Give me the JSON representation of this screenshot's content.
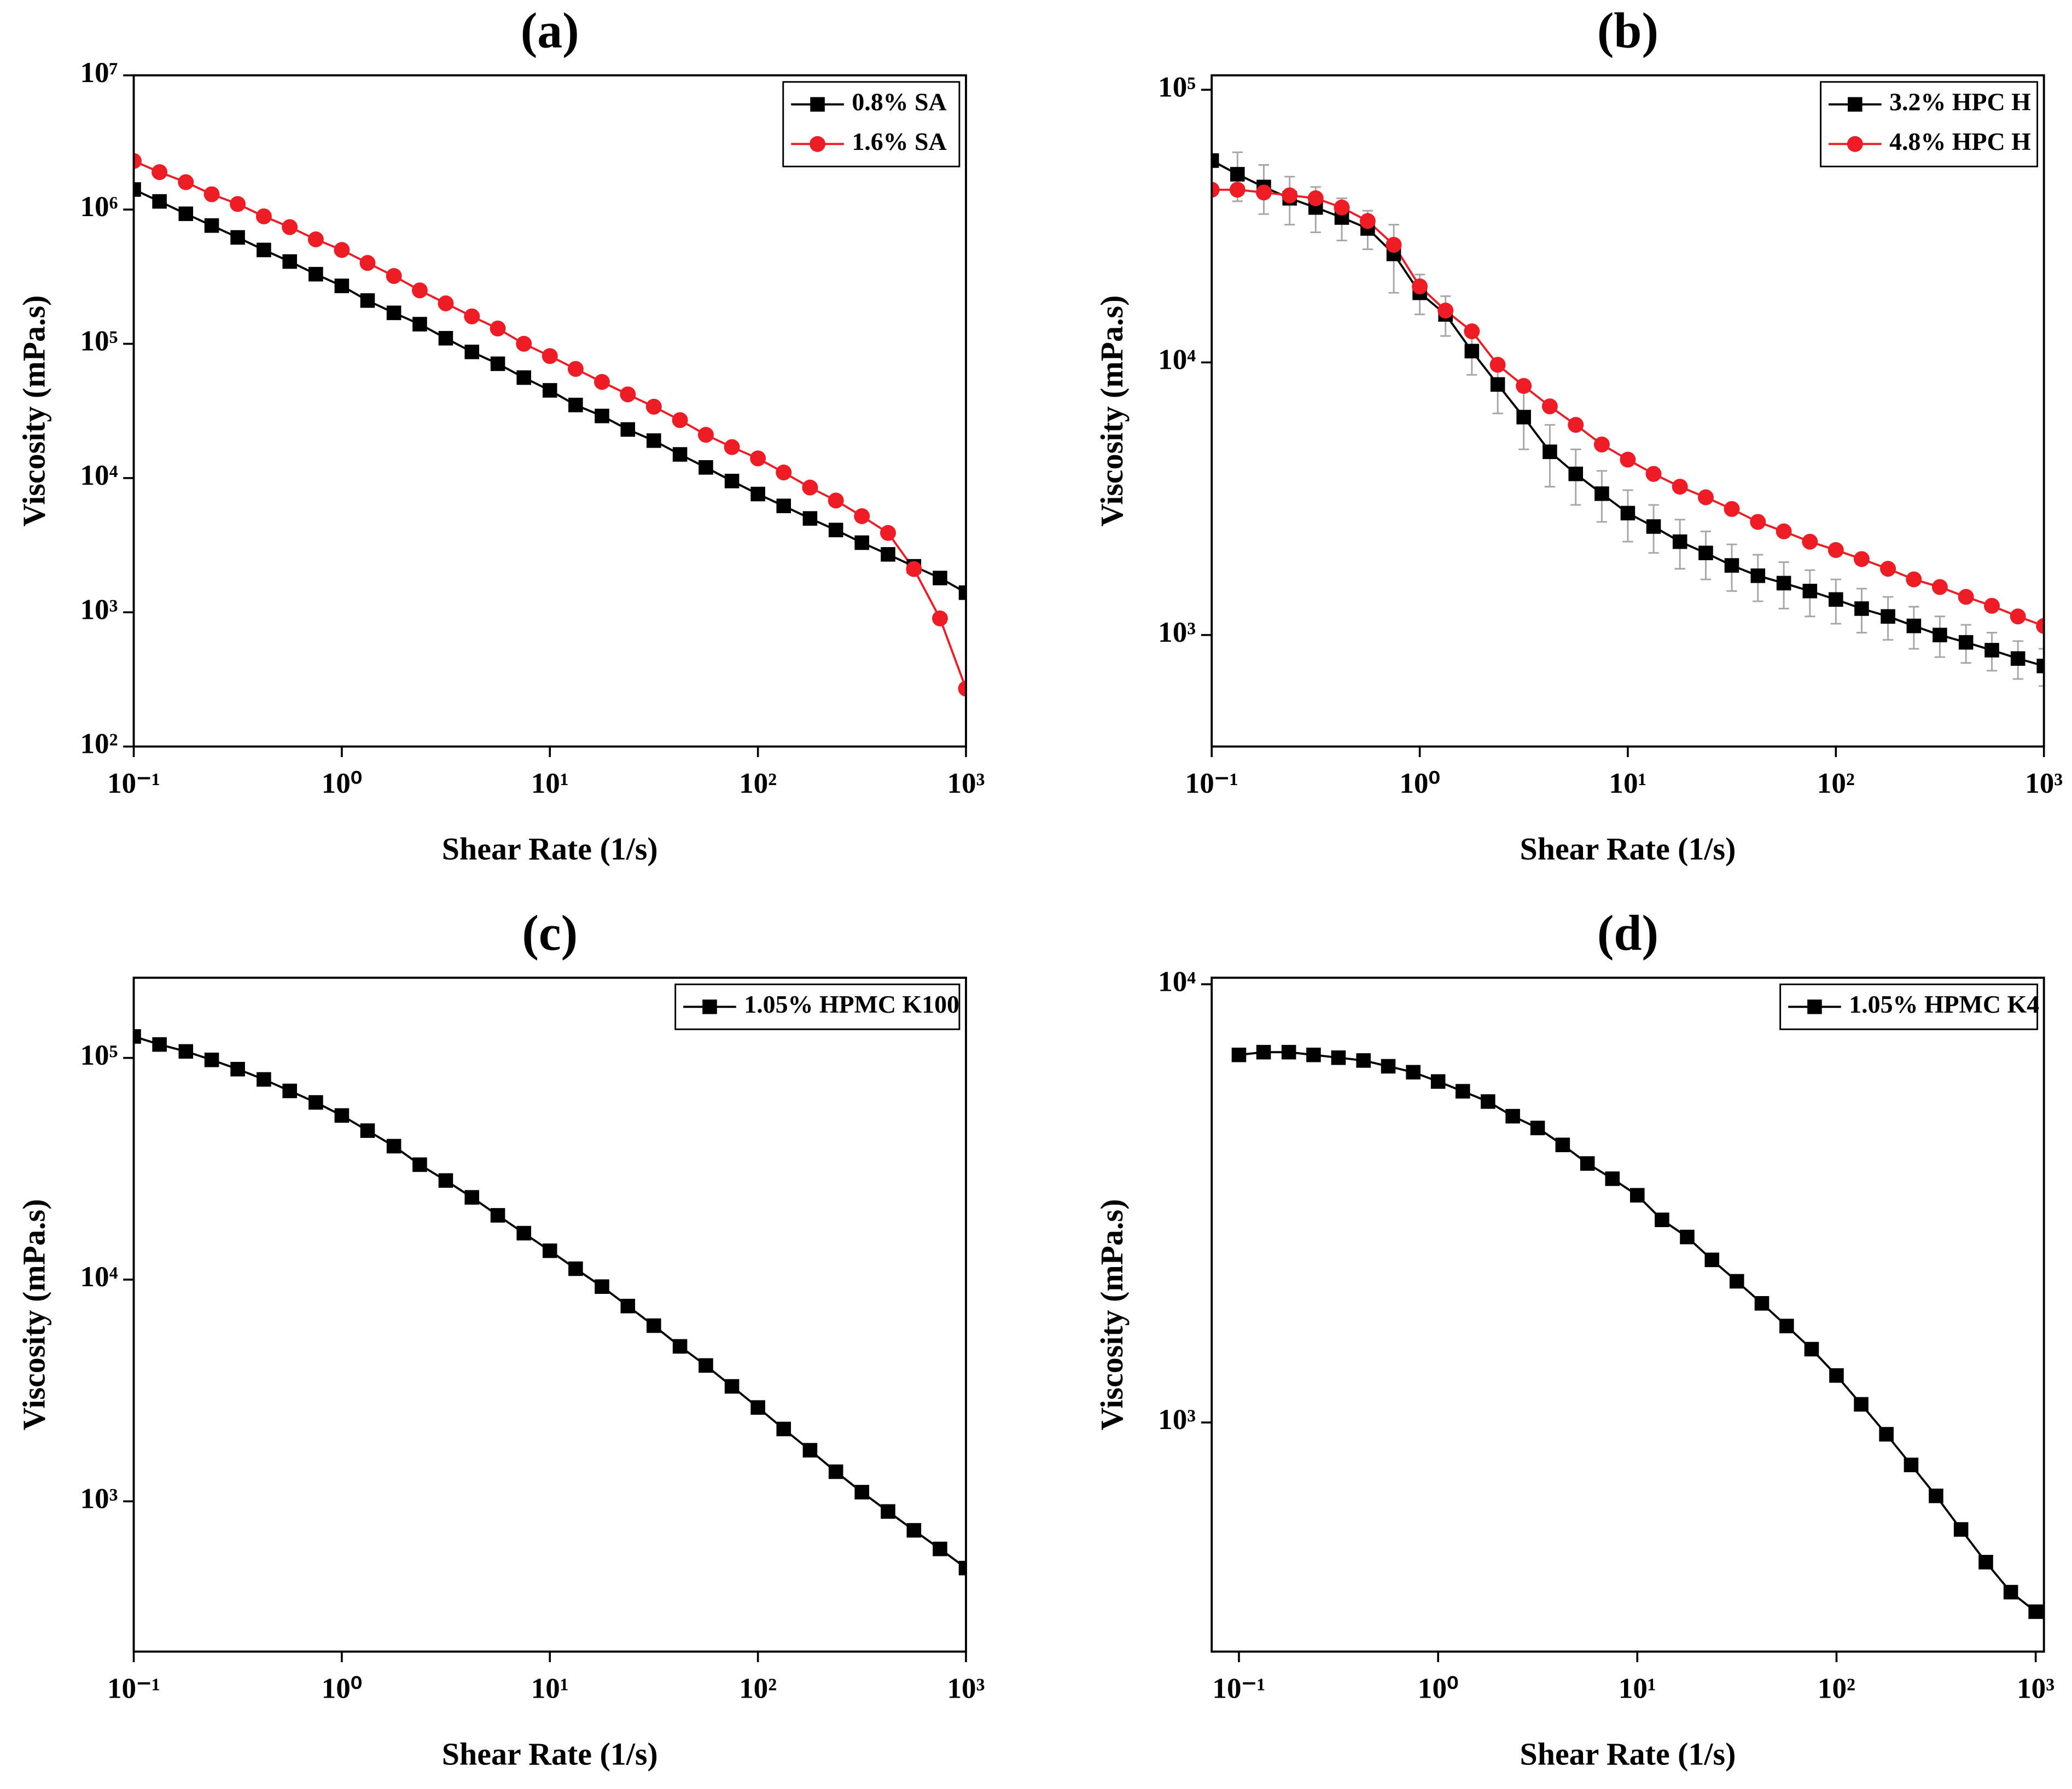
{
  "chart_data": [
    {
      "type": "line",
      "title": "(a)",
      "xlabel": "Shear Rate (1/s)",
      "ylabel": "Viscosity (mPa.s)",
      "log_x": true,
      "log_y": true,
      "legend": "upper right",
      "x": [
        0.1,
        0.133,
        0.178,
        0.237,
        0.316,
        0.422,
        0.562,
        0.75,
        1,
        1.33,
        1.78,
        2.37,
        3.16,
        4.22,
        5.62,
        7.5,
        10,
        13.3,
        17.8,
        23.7,
        31.6,
        42.2,
        56.2,
        75,
        100,
        133,
        178,
        237,
        316,
        422,
        562,
        750,
        1000
      ],
      "xlim": [
        0.1,
        1000
      ],
      "xticks": [
        {
          "value": 0.1,
          "label": "10⁻¹"
        },
        {
          "value": 1,
          "label": "10⁰"
        },
        {
          "value": 10,
          "label": "10¹"
        },
        {
          "value": 100,
          "label": "10²"
        },
        {
          "value": 1000,
          "label": "10³"
        }
      ],
      "ylim": [
        100,
        10000000
      ],
      "yticks": [
        {
          "value": 100,
          "label": "10²"
        },
        {
          "value": 1000,
          "label": "10³"
        },
        {
          "value": 10000,
          "label": "10⁴"
        },
        {
          "value": 100000,
          "label": "10⁵"
        },
        {
          "value": 1000000,
          "label": "10⁶"
        },
        {
          "value": 10000000,
          "label": "10⁷"
        }
      ],
      "series": [
        {
          "name": "0.8% SA",
          "color": "#000000",
          "marker": "square",
          "values": [
            1410000,
            1150000,
            930000,
            760000,
            620000,
            500000,
            410000,
            330000,
            270000,
            210000,
            170000,
            140000,
            110000,
            87000,
            71000,
            56000,
            45000,
            35000,
            29000,
            23000,
            19000,
            15000,
            12000,
            9500,
            7600,
            6200,
            5000,
            4100,
            3300,
            2700,
            2200,
            1800,
            1400
          ]
        },
        {
          "name": "1.6% SA",
          "color": "#ee1c25",
          "marker": "circle",
          "values": [
            2300000,
            1900000,
            1600000,
            1300000,
            1100000,
            890000,
            740000,
            600000,
            500000,
            400000,
            320000,
            250000,
            200000,
            160000,
            130000,
            100000,
            81000,
            65000,
            52000,
            42000,
            34000,
            27000,
            21000,
            17000,
            14000,
            11000,
            8500,
            6800,
            5200,
            3900,
            2100,
            900,
            270
          ]
        }
      ]
    },
    {
      "type": "line",
      "title": "(b)",
      "xlabel": "Shear Rate (1/s)",
      "ylabel": "Viscosity (mPa.s)",
      "log_x": true,
      "log_y": true,
      "legend": "upper right",
      "x": [
        0.1,
        0.133,
        0.178,
        0.237,
        0.316,
        0.422,
        0.562,
        0.75,
        1,
        1.33,
        1.78,
        2.37,
        3.16,
        4.22,
        5.62,
        7.5,
        10,
        13.3,
        17.8,
        23.7,
        31.6,
        42.2,
        56.2,
        75,
        100,
        133,
        178,
        237,
        316,
        422,
        562,
        750,
        1000
      ],
      "xlim": [
        0.1,
        1000
      ],
      "xticks": [
        {
          "value": 0.1,
          "label": "10⁻¹"
        },
        {
          "value": 1,
          "label": "10⁰"
        },
        {
          "value": 10,
          "label": "10¹"
        },
        {
          "value": 100,
          "label": "10²"
        },
        {
          "value": 1000,
          "label": "10³"
        }
      ],
      "ylim": [
        390,
        113000
      ],
      "yticks": [
        {
          "value": 1000,
          "label": "10³"
        },
        {
          "value": 10000,
          "label": "10⁴"
        },
        {
          "value": 100000,
          "label": "10⁵"
        }
      ],
      "error_color": "#a6a6a6",
      "series": [
        {
          "name": "3.2% HPC H",
          "color": "#000000",
          "marker": "square",
          "values": [
            55000,
            49000,
            44000,
            40000,
            37000,
            34000,
            31000,
            25000,
            18000,
            15000,
            11000,
            8300,
            6300,
            4700,
            3900,
            3300,
            2800,
            2500,
            2200,
            2000,
            1800,
            1650,
            1550,
            1450,
            1350,
            1250,
            1170,
            1080,
            1000,
            940,
            880,
            820,
            770
          ],
          "errors": [
            3000,
            10000,
            9000,
            8000,
            7000,
            6000,
            5000,
            7000,
            3000,
            2500,
            2000,
            1800,
            1500,
            1200,
            900,
            700,
            600,
            500,
            450,
            400,
            350,
            320,
            300,
            280,
            250,
            230,
            210,
            190,
            170,
            150,
            140,
            130,
            120
          ]
        },
        {
          "name": "4.8% HPC H",
          "color": "#ee1c25",
          "marker": "circle",
          "values": [
            43000,
            43000,
            42000,
            41000,
            40000,
            37000,
            33000,
            27000,
            19000,
            15500,
            13000,
            9800,
            8200,
            6900,
            5900,
            5000,
            4400,
            3900,
            3500,
            3200,
            2900,
            2600,
            2400,
            2200,
            2050,
            1900,
            1750,
            1600,
            1500,
            1380,
            1280,
            1170,
            1080
          ]
        }
      ]
    },
    {
      "type": "line",
      "title": "(c)",
      "xlabel": "Shear Rate (1/s)",
      "ylabel": "Viscosity (mPa.s)",
      "log_x": true,
      "log_y": true,
      "legend": "upper right",
      "x": [
        0.1,
        0.133,
        0.178,
        0.237,
        0.316,
        0.422,
        0.562,
        0.75,
        1,
        1.33,
        1.78,
        2.37,
        3.16,
        4.22,
        5.62,
        7.5,
        10,
        13.3,
        17.8,
        23.7,
        31.6,
        42.2,
        56.2,
        75,
        100,
        133,
        178,
        237,
        316,
        422,
        562,
        750,
        1000
      ],
      "xlim": [
        0.1,
        1000
      ],
      "xticks": [
        {
          "value": 0.1,
          "label": "10⁻¹"
        },
        {
          "value": 1,
          "label": "10⁰"
        },
        {
          "value": 10,
          "label": "10¹"
        },
        {
          "value": 100,
          "label": "10²"
        },
        {
          "value": 1000,
          "label": "10³"
        }
      ],
      "ylim": [
        210,
        230000
      ],
      "yticks": [
        {
          "value": 1000,
          "label": "10³"
        },
        {
          "value": 10000,
          "label": "10⁴"
        },
        {
          "value": 100000,
          "label": "10⁵"
        }
      ],
      "series": [
        {
          "name": "1.05% HPMC K100",
          "color": "#000000",
          "marker": "square",
          "values": [
            125000,
            115000,
            107000,
            98000,
            89000,
            80000,
            71000,
            63000,
            55000,
            47000,
            40000,
            33000,
            28000,
            23500,
            19500,
            16200,
            13500,
            11200,
            9300,
            7600,
            6200,
            5000,
            4100,
            3300,
            2650,
            2120,
            1700,
            1360,
            1100,
            900,
            740,
            610,
            500
          ]
        }
      ]
    },
    {
      "type": "line",
      "title": "(d)",
      "xlabel": "Shear Rate (1/s)",
      "ylabel": "Viscosity (mPa.s)",
      "log_x": true,
      "log_y": true,
      "legend": "upper right",
      "x": [
        0.1,
        0.133,
        0.178,
        0.237,
        0.316,
        0.422,
        0.562,
        0.75,
        1,
        1.33,
        1.78,
        2.37,
        3.16,
        4.22,
        5.62,
        7.5,
        10,
        13.3,
        17.8,
        23.7,
        31.6,
        42.2,
        56.2,
        75,
        100,
        133,
        178,
        237,
        316,
        422,
        562,
        750,
        1000
      ],
      "xlim": [
        0.073,
        1100
      ],
      "xticks": [
        {
          "value": 0.1,
          "label": "10⁻¹"
        },
        {
          "value": 1,
          "label": "10⁰"
        },
        {
          "value": 10,
          "label": "10¹"
        },
        {
          "value": 100,
          "label": "10²"
        },
        {
          "value": 1000,
          "label": "10³"
        }
      ],
      "ylim": [
        300,
        10350
      ],
      "yticks": [
        {
          "value": 1000,
          "label": "10³"
        },
        {
          "value": 10000,
          "label": "10⁴"
        }
      ],
      "series": [
        {
          "name": "1.05% HPMC K4",
          "color": "#000000",
          "marker": "square",
          "values": [
            6900,
            7000,
            7000,
            6900,
            6800,
            6700,
            6500,
            6300,
            6000,
            5700,
            5400,
            5000,
            4700,
            4300,
            3900,
            3600,
            3300,
            2900,
            2650,
            2350,
            2100,
            1870,
            1660,
            1470,
            1280,
            1100,
            940,
            800,
            680,
            570,
            480,
            410,
            370
          ]
        }
      ]
    }
  ]
}
